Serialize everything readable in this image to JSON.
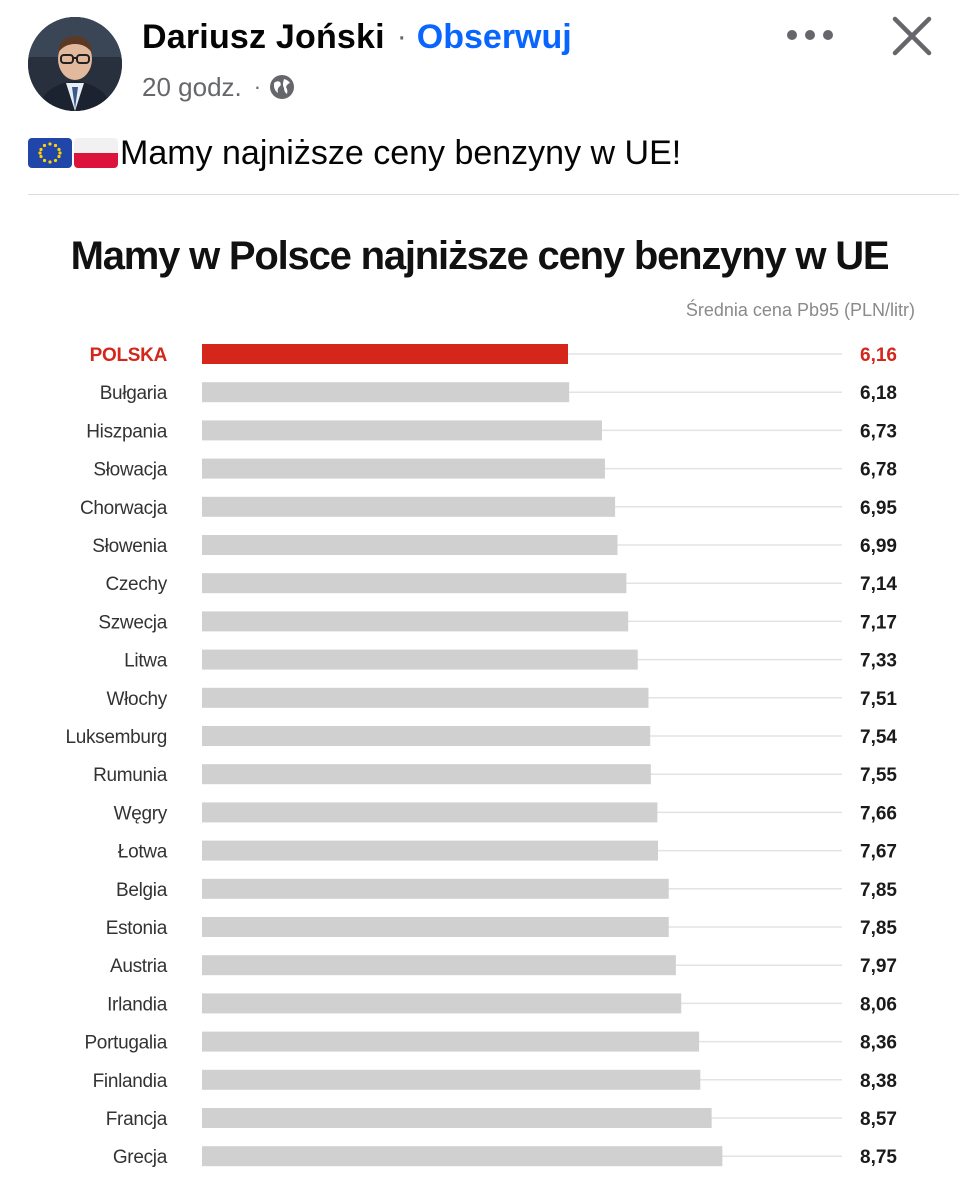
{
  "post": {
    "author": "Dariusz Joński",
    "separator": "·",
    "follow_label": "Obserwuj",
    "time": "20 godz.",
    "time_separator": "·",
    "audience_icon": "globe-icon",
    "more_icon": "more-horizontal-icon",
    "close_icon": "close-icon",
    "flags": [
      "eu-flag-icon",
      "poland-flag-icon"
    ],
    "text": "Mamy najniższe ceny benzyny w UE!"
  },
  "colors": {
    "link": "#0866ff",
    "highlight_bar": "#d4261b",
    "bar": "#d0d0d0"
  },
  "chart_data": {
    "type": "bar",
    "orientation": "horizontal",
    "title": "Mamy w Polsce najniższe ceny benzyny w UE",
    "subtitle": "Średnia cena Pb95 (PLN/litr)",
    "highlight": "POLSKA",
    "categories": [
      "POLSKA",
      "Bułgaria",
      "Hiszpania",
      "Słowacja",
      "Chorwacja",
      "Słowenia",
      "Czechy",
      "Szwecja",
      "Litwa",
      "Włochy",
      "Luksemburg",
      "Rumunia",
      "Węgry",
      "Łotwa",
      "Belgia",
      "Estonia",
      "Austria",
      "Irlandia",
      "Portugalia",
      "Finlandia",
      "Francja",
      "Grecja"
    ],
    "values": [
      6.16,
      6.18,
      6.73,
      6.78,
      6.95,
      6.99,
      7.14,
      7.17,
      7.33,
      7.51,
      7.54,
      7.55,
      7.66,
      7.67,
      7.85,
      7.85,
      7.97,
      8.06,
      8.36,
      8.38,
      8.57,
      8.75
    ],
    "value_labels": [
      "6,16",
      "6,18",
      "6,73",
      "6,78",
      "6,95",
      "6,99",
      "7,14",
      "7,17",
      "7,33",
      "7,51",
      "7,54",
      "7,55",
      "7,66",
      "7,67",
      "7,85",
      "7,85",
      "7,97",
      "8,06",
      "8,36",
      "8,38",
      "8,57",
      "8,75"
    ]
  }
}
